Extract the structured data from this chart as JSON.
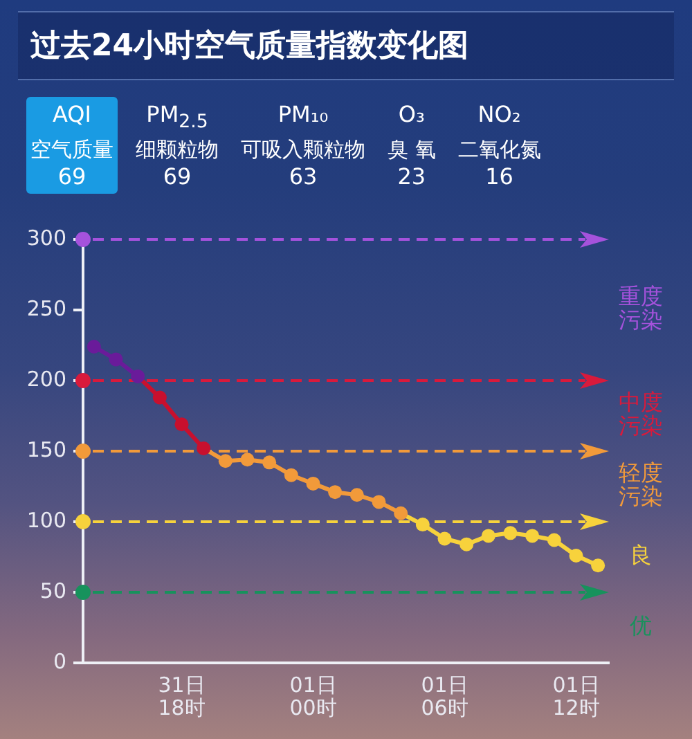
{
  "chart_data": [
    {
      "type": "other",
      "title": "过去24小时空气质量指数变化图",
      "categories": [
        "AQI\n空气质量",
        "PM$_{2.5}$\n细颗粒物",
        "PM₁₀\n可吸入颗粒物",
        "O₃\n臭 氧",
        "NO₂\n二氧化氮"
      ],
      "values": [
        69,
        69,
        63,
        23,
        16
      ],
      "colors": [
        "#1a9be3",
        null,
        null,
        null,
        null
      ],
      "data_labels": true
    },
    {
      "type": "line",
      "categories": [
        null,
        null,
        null,
        null,
        "31日\n18时",
        null,
        null,
        null,
        null,
        null,
        "01日\n00时",
        null,
        null,
        null,
        null,
        null,
        "01日\n06时",
        null,
        null,
        null,
        null,
        null,
        "01日\n12时",
        null
      ],
      "values": [
        224,
        215,
        203,
        188,
        169,
        152,
        143,
        144,
        142,
        133,
        127,
        121,
        119,
        114,
        106,
        98,
        88,
        84,
        90,
        92,
        90,
        87,
        76,
        69
      ],
      "colors": [
        "#6a1b9a",
        "#6a1b9a",
        "#6a1b9a",
        "#c8102e",
        "#c8102e",
        "#c8102e",
        "#f29a3a",
        "#f29a3a",
        "#f29a3a",
        "#f29a3a",
        "#f29a3a",
        "#f29a3a",
        "#f29a3a",
        "#f29a3a",
        "#f29a3a",
        "#f7d23c",
        "#f7d23c",
        "#f7d23c",
        "#f7d23c",
        "#f7d23c",
        "#f7d23c",
        "#f7d23c",
        "#f7d23c",
        "#f7d23c"
      ],
      "ylim": [
        0,
        300
      ],
      "yticks": [
        0,
        50,
        100,
        150,
        200,
        250,
        300
      ],
      "marker": "circle",
      "ref_lines": [
        {
          "axis": "y",
          "value": 300,
          "label": "重度污染",
          "color": "#a552dc",
          "line_style": "dashed"
        },
        {
          "axis": "y",
          "value": 200,
          "label": "中度污染",
          "color": "#d81a3c",
          "line_style": "dashed"
        },
        {
          "axis": "y",
          "value": 150,
          "label": "轻度污染",
          "color": "#f29a3a",
          "line_style": "dashed"
        },
        {
          "axis": "y",
          "value": 100,
          "label": "良",
          "color": "#f7d23c",
          "line_style": "dashed"
        },
        {
          "axis": "y",
          "value": 50,
          "label": "优",
          "color": "#17925c",
          "line_style": "dashed"
        }
      ]
    }
  ]
}
